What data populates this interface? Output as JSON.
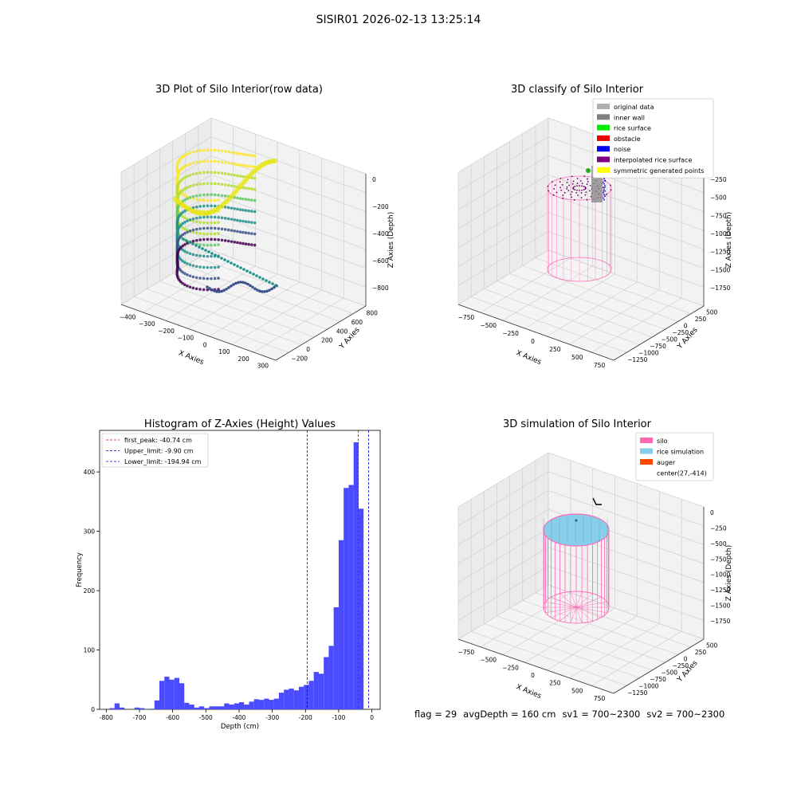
{
  "suptitle": "SISIR01 2026-02-13 13:25:14",
  "status": {
    "flag": "flag = 29",
    "avg_depth": "avgDepth = 160 cm",
    "sv1": "sv1 = 700~2300",
    "sv2": "sv2 = 700~2300"
  },
  "chart_data": [
    {
      "type": "scatter3d",
      "title": "3D Plot of Silo Interior(row data)",
      "xlabel": "X Axies",
      "ylabel": "Y Axies",
      "zlabel": "Z Axies (Depth)",
      "xticks": [
        "−400",
        "−300",
        "−200",
        "−100",
        "0",
        "100",
        "200",
        "300"
      ],
      "yticks": [
        "−200",
        "0",
        "200",
        "400",
        "600",
        "800"
      ],
      "zticks": [
        "0",
        "−200",
        "−400",
        "−600",
        "−800"
      ],
      "colormap": "viridis"
    },
    {
      "type": "scatter3d",
      "title": "3D classify of Silo Interior",
      "xlabel": "X Axies",
      "ylabel": "Y Axies",
      "zlabel": "Z Axies (Depth)",
      "xticks": [
        "−750",
        "−500",
        "−250",
        "0",
        "250",
        "500",
        "750"
      ],
      "yticks": [
        "−1250",
        "−1000",
        "−750",
        "−500",
        "−250",
        "0",
        "250",
        "500"
      ],
      "zticks": [
        "−250",
        "−500",
        "−750",
        "−1000",
        "−1250",
        "−1500",
        "−1750"
      ],
      "legend": [
        {
          "label": "original data",
          "color": "#b0b0b0"
        },
        {
          "label": "inner wall",
          "color": "#808080"
        },
        {
          "label": "rice surface",
          "color": "#00ee00"
        },
        {
          "label": "obstacle",
          "color": "#ee0000"
        },
        {
          "label": "noise",
          "color": "#0000ee"
        },
        {
          "label": "interpolated rice surface",
          "color": "#800080"
        },
        {
          "label": "symmetric generated points",
          "color": "#ffff00"
        }
      ],
      "legend_position": "upper right"
    },
    {
      "type": "bar",
      "title": "Histogram of Z-Axies (Height) Values",
      "xlabel": "Depth (cm)",
      "ylabel": "Frequency",
      "xlim": [
        -820,
        25
      ],
      "ylim": [
        0,
        470
      ],
      "xticks": [
        -800,
        -700,
        -600,
        -500,
        -400,
        -300,
        -200,
        -100,
        0
      ],
      "yticks": [
        0,
        100,
        200,
        300,
        400
      ],
      "bin_width": 15,
      "bins": [
        [
          -790,
          2
        ],
        [
          -775,
          10
        ],
        [
          -760,
          3
        ],
        [
          -745,
          0
        ],
        [
          -730,
          0
        ],
        [
          -715,
          3
        ],
        [
          -700,
          2
        ],
        [
          -685,
          0
        ],
        [
          -670,
          1
        ],
        [
          -655,
          15
        ],
        [
          -640,
          48
        ],
        [
          -625,
          55
        ],
        [
          -610,
          50
        ],
        [
          -595,
          53
        ],
        [
          -580,
          44
        ],
        [
          -565,
          11
        ],
        [
          -550,
          8
        ],
        [
          -535,
          3
        ],
        [
          -520,
          5
        ],
        [
          -505,
          2
        ],
        [
          -490,
          5
        ],
        [
          -475,
          5
        ],
        [
          -460,
          5
        ],
        [
          -445,
          10
        ],
        [
          -430,
          8
        ],
        [
          -415,
          10
        ],
        [
          -400,
          12
        ],
        [
          -385,
          8
        ],
        [
          -370,
          13
        ],
        [
          -355,
          17
        ],
        [
          -340,
          16
        ],
        [
          -325,
          18
        ],
        [
          -310,
          16
        ],
        [
          -295,
          18
        ],
        [
          -280,
          28
        ],
        [
          -265,
          33
        ],
        [
          -250,
          35
        ],
        [
          -235,
          32
        ],
        [
          -220,
          38
        ],
        [
          -205,
          41
        ],
        [
          -190,
          48
        ],
        [
          -175,
          63
        ],
        [
          -160,
          60
        ],
        [
          -145,
          88
        ],
        [
          -130,
          107
        ],
        [
          -115,
          172
        ],
        [
          -100,
          285
        ],
        [
          -85,
          373
        ],
        [
          -70,
          378
        ],
        [
          -55,
          450
        ],
        [
          -40,
          338
        ],
        [
          -25,
          0
        ]
      ],
      "bar_color": "#4a4aff",
      "vlines": [
        {
          "label": "first_peak: -40.74 cm",
          "x": -40.74,
          "color": "#dd0000"
        },
        {
          "label": "Upper_limit: -9.90 cm",
          "x": -9.9,
          "color": "#0000cc"
        },
        {
          "label": "Lower_limit: -194.94 cm",
          "x": -194.94,
          "color": "#0000cc"
        }
      ],
      "legend_position": "upper left"
    },
    {
      "type": "surface3d",
      "title": "3D simulation of Silo Interior",
      "xlabel": "X Axies",
      "ylabel": "Y Axies",
      "zlabel": "Z Axies (Depth)",
      "xticks": [
        "−750",
        "−500",
        "−250",
        "0",
        "250",
        "500",
        "750"
      ],
      "yticks": [
        "−1250",
        "−1000",
        "−750",
        "−500",
        "−250",
        "0",
        "250",
        "500"
      ],
      "zticks": [
        "0",
        "−250",
        "−500",
        "−750",
        "−1000",
        "−1250",
        "−1500",
        "−1750"
      ],
      "legend": [
        {
          "label": "silo",
          "color": "#ff69b4"
        },
        {
          "label": "rice simulation",
          "color": "#87ceeb"
        },
        {
          "label": "auger",
          "color": "#ff4500"
        },
        {
          "label": "center(27,-414)",
          "color": ""
        }
      ],
      "legend_position": "upper right"
    }
  ]
}
